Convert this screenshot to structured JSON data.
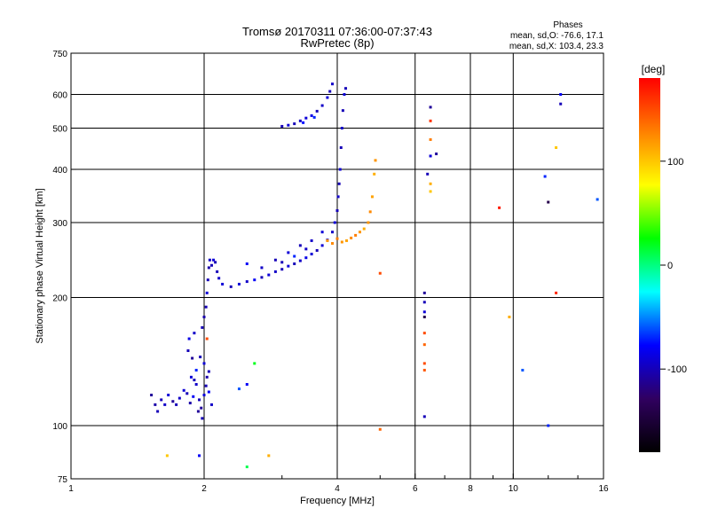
{
  "chart_data": {
    "type": "scatter",
    "title": "Tromsø 20170311 07:36:00-07:37:43",
    "subtitle": "RwPretec (8p)",
    "xlabel": "Frequency [MHz]",
    "ylabel": "Stationary phase Virtual Height [km]",
    "x_scale": "log",
    "y_scale": "log",
    "xlim": [
      1,
      16
    ],
    "ylim": [
      75,
      750
    ],
    "x_ticks": [
      1,
      2,
      4,
      6,
      8,
      10,
      16
    ],
    "x_tick_labels": [
      "1",
      "2",
      "4",
      "6",
      "8",
      "10",
      "16"
    ],
    "y_ticks": [
      75,
      100,
      200,
      300,
      400,
      500,
      600,
      750
    ],
    "y_tick_labels": [
      "75",
      "100",
      "200",
      "300",
      "400",
      "500",
      "600",
      "750"
    ],
    "grid_x": [
      2,
      4,
      6,
      8,
      10
    ],
    "grid_y": [
      100,
      200,
      300,
      400,
      500,
      600
    ],
    "grid": true,
    "phase_info": {
      "heading": "Phases",
      "line1": "mean, sd,O: -76.6, 17.1",
      "line2": "mean, sd,X: 103.4, 23.3"
    },
    "colorbar": {
      "label": "[deg]",
      "range": [
        -180,
        180
      ],
      "ticks": [
        100,
        0,
        -100
      ],
      "tick_labels": [
        "100",
        "0",
        "-100"
      ],
      "colors": [
        "#ff0000",
        "#ff8000",
        "#ffff00",
        "#00ff00",
        "#00ffff",
        "#0000ff",
        "#300060",
        "#000000"
      ]
    },
    "series": [
      {
        "comment_free": true,
        "points": [
          {
            "x": 1.52,
            "y": 118,
            "p": -110
          },
          {
            "x": 1.55,
            "y": 112,
            "p": -105
          },
          {
            "x": 1.57,
            "y": 108,
            "p": -100
          },
          {
            "x": 1.6,
            "y": 115,
            "p": -100
          },
          {
            "x": 1.63,
            "y": 112,
            "p": -95
          },
          {
            "x": 1.66,
            "y": 118,
            "p": -90
          },
          {
            "x": 1.7,
            "y": 114,
            "p": -110
          },
          {
            "x": 1.73,
            "y": 112,
            "p": -100
          },
          {
            "x": 1.76,
            "y": 116,
            "p": -95
          },
          {
            "x": 1.8,
            "y": 121,
            "p": -90
          },
          {
            "x": 1.83,
            "y": 119,
            "p": -100
          },
          {
            "x": 1.86,
            "y": 113,
            "p": -105
          },
          {
            "x": 1.89,
            "y": 117,
            "p": -80
          },
          {
            "x": 1.92,
            "y": 125,
            "p": -95
          },
          {
            "x": 1.95,
            "y": 115,
            "p": -100
          },
          {
            "x": 1.97,
            "y": 110,
            "p": -110
          },
          {
            "x": 2.0,
            "y": 118,
            "p": -90
          },
          {
            "x": 2.02,
            "y": 124,
            "p": -100
          },
          {
            "x": 2.05,
            "y": 120,
            "p": -80
          },
          {
            "x": 2.08,
            "y": 112,
            "p": -95
          },
          {
            "x": 1.9,
            "y": 128,
            "p": -100
          },
          {
            "x": 1.94,
            "y": 108,
            "p": -110
          },
          {
            "x": 1.98,
            "y": 104,
            "p": -100
          },
          {
            "x": 2.03,
            "y": 130,
            "p": -105
          },
          {
            "x": 1.87,
            "y": 130,
            "p": -90
          },
          {
            "x": 1.84,
            "y": 150,
            "p": -100
          },
          {
            "x": 1.88,
            "y": 144,
            "p": -110
          },
          {
            "x": 1.92,
            "y": 135,
            "p": -70
          },
          {
            "x": 1.96,
            "y": 145,
            "p": -100
          },
          {
            "x": 2.0,
            "y": 140,
            "p": -90
          },
          {
            "x": 2.05,
            "y": 134,
            "p": -100
          },
          {
            "x": 1.85,
            "y": 160,
            "p": -85
          },
          {
            "x": 1.9,
            "y": 165,
            "p": -95
          },
          {
            "x": 1.98,
            "y": 170,
            "p": -100
          },
          {
            "x": 2.0,
            "y": 180,
            "p": -105
          },
          {
            "x": 2.03,
            "y": 160,
            "p": 150
          },
          {
            "x": 2.02,
            "y": 190,
            "p": -100
          },
          {
            "x": 2.03,
            "y": 205,
            "p": -90
          },
          {
            "x": 2.04,
            "y": 220,
            "p": -100
          },
          {
            "x": 2.05,
            "y": 235,
            "p": -105
          },
          {
            "x": 2.06,
            "y": 245,
            "p": -95
          },
          {
            "x": 2.08,
            "y": 238,
            "p": -100
          },
          {
            "x": 2.1,
            "y": 245,
            "p": -90
          },
          {
            "x": 2.12,
            "y": 242,
            "p": -100
          },
          {
            "x": 2.14,
            "y": 230,
            "p": -100
          },
          {
            "x": 2.16,
            "y": 222,
            "p": -95
          },
          {
            "x": 2.2,
            "y": 215,
            "p": -90
          },
          {
            "x": 2.3,
            "y": 212,
            "p": -100
          },
          {
            "x": 2.4,
            "y": 215,
            "p": -90
          },
          {
            "x": 2.5,
            "y": 218,
            "p": -95
          },
          {
            "x": 2.6,
            "y": 220,
            "p": -80
          },
          {
            "x": 2.7,
            "y": 223,
            "p": -100
          },
          {
            "x": 2.8,
            "y": 226,
            "p": -90
          },
          {
            "x": 2.9,
            "y": 230,
            "p": -95
          },
          {
            "x": 3.0,
            "y": 233,
            "p": -100
          },
          {
            "x": 3.1,
            "y": 237,
            "p": -90
          },
          {
            "x": 3.2,
            "y": 240,
            "p": -100
          },
          {
            "x": 3.3,
            "y": 244,
            "p": -95
          },
          {
            "x": 3.4,
            "y": 248,
            "p": -85
          },
          {
            "x": 3.5,
            "y": 253,
            "p": -90
          },
          {
            "x": 3.6,
            "y": 258,
            "p": -100
          },
          {
            "x": 3.7,
            "y": 265,
            "p": -90
          },
          {
            "x": 3.8,
            "y": 273,
            "p": -100
          },
          {
            "x": 3.9,
            "y": 285,
            "p": -95
          },
          {
            "x": 3.95,
            "y": 300,
            "p": -90
          },
          {
            "x": 4.0,
            "y": 320,
            "p": -100
          },
          {
            "x": 4.02,
            "y": 345,
            "p": -95
          },
          {
            "x": 4.04,
            "y": 370,
            "p": -100
          },
          {
            "x": 4.06,
            "y": 400,
            "p": -90
          },
          {
            "x": 4.08,
            "y": 450,
            "p": -100
          },
          {
            "x": 4.1,
            "y": 500,
            "p": -95
          },
          {
            "x": 4.12,
            "y": 550,
            "p": -100
          },
          {
            "x": 4.15,
            "y": 600,
            "p": -90
          },
          {
            "x": 4.18,
            "y": 620,
            "p": -100
          },
          {
            "x": 2.5,
            "y": 240,
            "p": -80
          },
          {
            "x": 2.7,
            "y": 235,
            "p": -95
          },
          {
            "x": 2.9,
            "y": 245,
            "p": -100
          },
          {
            "x": 3.1,
            "y": 255,
            "p": -90
          },
          {
            "x": 3.3,
            "y": 265,
            "p": -100
          },
          {
            "x": 3.5,
            "y": 272,
            "p": -95
          },
          {
            "x": 3.7,
            "y": 285,
            "p": -90
          },
          {
            "x": 3.2,
            "y": 250,
            "p": -70
          },
          {
            "x": 3.0,
            "y": 242,
            "p": -100
          },
          {
            "x": 3.4,
            "y": 260,
            "p": -95
          },
          {
            "x": 3.0,
            "y": 505,
            "p": -100
          },
          {
            "x": 3.1,
            "y": 508,
            "p": -90
          },
          {
            "x": 3.2,
            "y": 512,
            "p": -100
          },
          {
            "x": 3.3,
            "y": 520,
            "p": -95
          },
          {
            "x": 3.4,
            "y": 528,
            "p": -90
          },
          {
            "x": 3.5,
            "y": 535,
            "p": -85
          },
          {
            "x": 3.6,
            "y": 548,
            "p": -100
          },
          {
            "x": 3.7,
            "y": 565,
            "p": -95
          },
          {
            "x": 3.8,
            "y": 590,
            "p": -90
          },
          {
            "x": 3.85,
            "y": 610,
            "p": -100
          },
          {
            "x": 3.9,
            "y": 635,
            "p": -95
          },
          {
            "x": 3.35,
            "y": 515,
            "p": -75
          },
          {
            "x": 3.55,
            "y": 530,
            "p": -70
          },
          {
            "x": 3.8,
            "y": 272,
            "p": 120
          },
          {
            "x": 3.9,
            "y": 268,
            "p": 125
          },
          {
            "x": 4.0,
            "y": 275,
            "p": 130
          },
          {
            "x": 4.1,
            "y": 270,
            "p": 120
          },
          {
            "x": 4.2,
            "y": 272,
            "p": 115
          },
          {
            "x": 4.3,
            "y": 276,
            "p": 125
          },
          {
            "x": 4.4,
            "y": 280,
            "p": 130
          },
          {
            "x": 4.5,
            "y": 285,
            "p": 120
          },
          {
            "x": 4.6,
            "y": 290,
            "p": 110
          },
          {
            "x": 4.7,
            "y": 300,
            "p": 120
          },
          {
            "x": 4.75,
            "y": 318,
            "p": 125
          },
          {
            "x": 4.8,
            "y": 345,
            "p": 115
          },
          {
            "x": 4.85,
            "y": 390,
            "p": 110
          },
          {
            "x": 4.88,
            "y": 420,
            "p": 120
          },
          {
            "x": 5.0,
            "y": 228,
            "p": 150
          },
          {
            "x": 5.0,
            "y": 98,
            "p": 140
          },
          {
            "x": 6.3,
            "y": 205,
            "p": -110
          },
          {
            "x": 6.3,
            "y": 195,
            "p": -100
          },
          {
            "x": 6.3,
            "y": 185,
            "p": -90
          },
          {
            "x": 6.3,
            "y": 180,
            "p": -140
          },
          {
            "x": 6.3,
            "y": 165,
            "p": 150
          },
          {
            "x": 6.3,
            "y": 155,
            "p": 140
          },
          {
            "x": 6.3,
            "y": 140,
            "p": 150
          },
          {
            "x": 6.3,
            "y": 135,
            "p": 145
          },
          {
            "x": 6.3,
            "y": 105,
            "p": -100
          },
          {
            "x": 6.5,
            "y": 560,
            "p": -110
          },
          {
            "x": 6.5,
            "y": 520,
            "p": 160
          },
          {
            "x": 6.5,
            "y": 470,
            "p": 130
          },
          {
            "x": 6.5,
            "y": 430,
            "p": -90
          },
          {
            "x": 6.7,
            "y": 435,
            "p": -110
          },
          {
            "x": 6.4,
            "y": 390,
            "p": -100
          },
          {
            "x": 6.5,
            "y": 370,
            "p": 110
          },
          {
            "x": 6.5,
            "y": 355,
            "p": 100
          },
          {
            "x": 9.3,
            "y": 325,
            "p": 170
          },
          {
            "x": 12.0,
            "y": 335,
            "p": -140
          },
          {
            "x": 12.5,
            "y": 205,
            "p": 165
          },
          {
            "x": 10.5,
            "y": 135,
            "p": -60
          },
          {
            "x": 9.8,
            "y": 180,
            "p": 110
          },
          {
            "x": 12.8,
            "y": 600,
            "p": -80
          },
          {
            "x": 12.8,
            "y": 570,
            "p": -100
          },
          {
            "x": 12.5,
            "y": 450,
            "p": 100
          },
          {
            "x": 15.5,
            "y": 340,
            "p": -60
          },
          {
            "x": 11.8,
            "y": 385,
            "p": -70
          },
          {
            "x": 12.0,
            "y": 100,
            "p": -70
          },
          {
            "x": 1.65,
            "y": 85,
            "p": 100
          },
          {
            "x": 2.5,
            "y": 80,
            "p": 10
          },
          {
            "x": 2.8,
            "y": 85,
            "p": 110
          },
          {
            "x": 2.6,
            "y": 140,
            "p": 20
          },
          {
            "x": 2.5,
            "y": 125,
            "p": -80
          },
          {
            "x": 2.4,
            "y": 122,
            "p": -60
          },
          {
            "x": 1.95,
            "y": 85,
            "p": -80
          }
        ]
      }
    ]
  }
}
